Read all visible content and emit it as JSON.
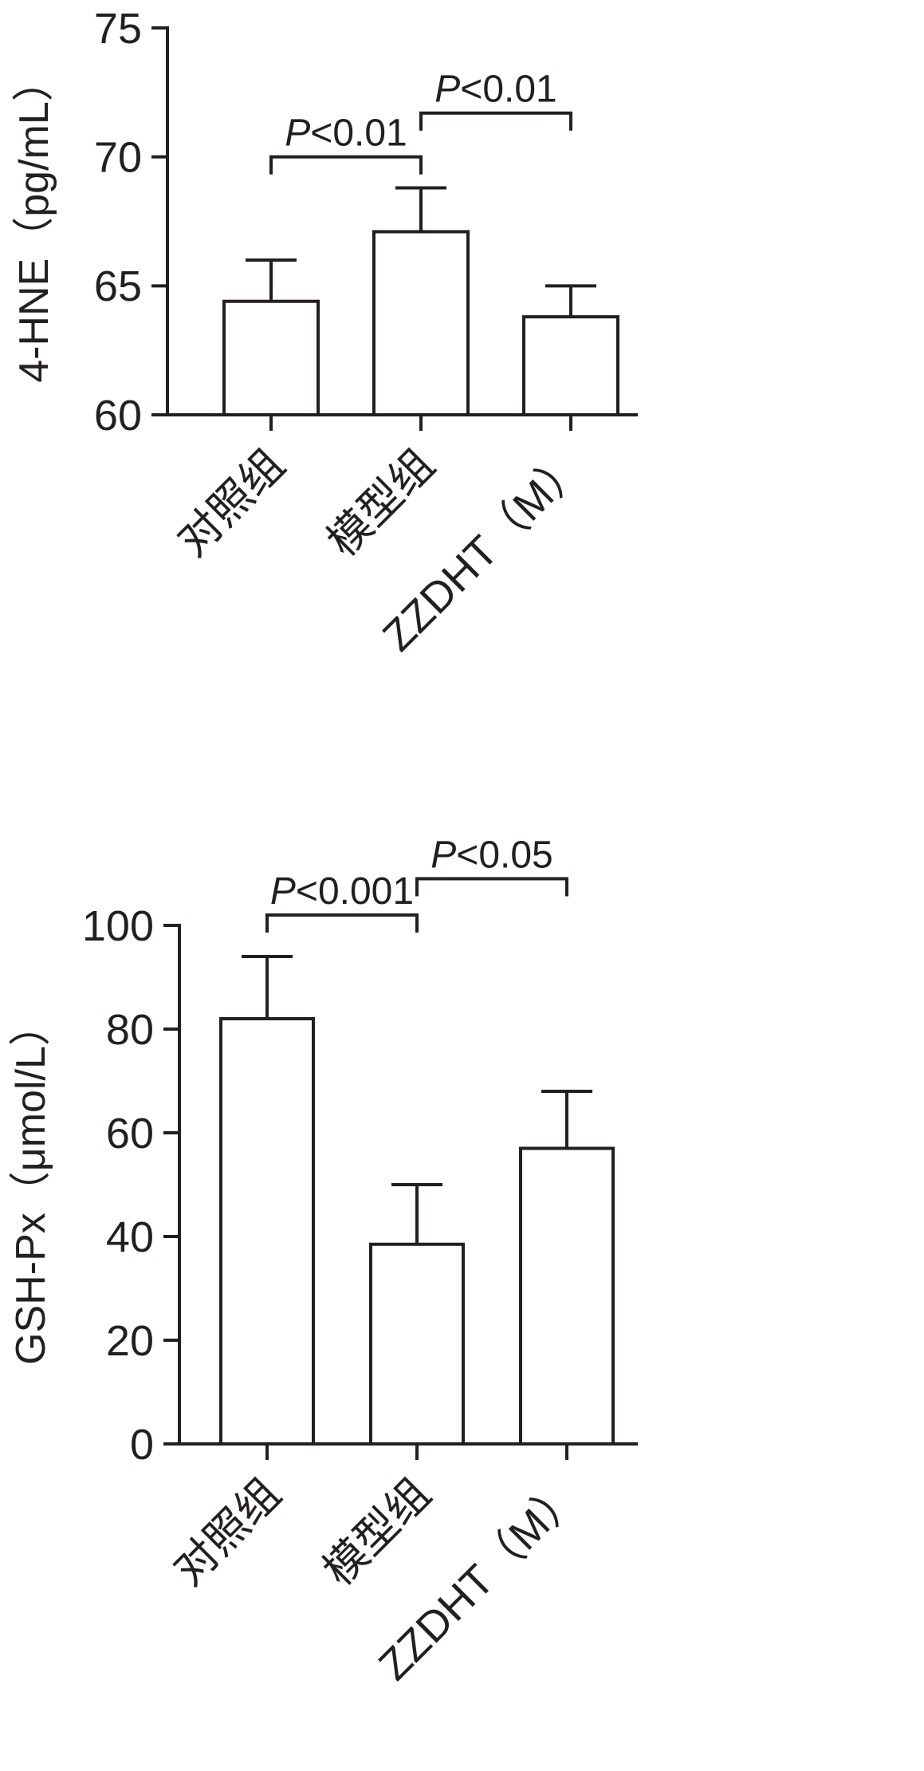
{
  "figure": {
    "background": "#ffffff",
    "ink": "#231f20",
    "panel_count": 2
  },
  "chart_data": [
    {
      "type": "bar",
      "title": "",
      "ylabel": "4-HNE（pg/mL）",
      "xlabel": "",
      "categories": [
        "对照组",
        "模型组",
        "ZZDHT（M）"
      ],
      "values": [
        64.4,
        67.1,
        63.8
      ],
      "errors_upper": [
        1.6,
        1.7,
        1.2
      ],
      "ylim": [
        60,
        75
      ],
      "yticks": [
        60,
        65,
        70,
        75
      ],
      "grid": false,
      "legend": null,
      "bar_fill": "#ffffff",
      "bar_stroke": "#231f20",
      "annotations": [
        {
          "label": "P<0.01",
          "between": [
            0,
            1
          ],
          "y": 70.0
        },
        {
          "label": "P<0.01",
          "between": [
            1,
            2
          ],
          "y": 71.7
        }
      ]
    },
    {
      "type": "bar",
      "title": "",
      "ylabel": "GSH-Px（μmol/L）",
      "xlabel": "",
      "categories": [
        "对照组",
        "模型组",
        "ZZDHT（M）"
      ],
      "values": [
        82,
        38.5,
        57
      ],
      "errors_upper": [
        12,
        11.5,
        11
      ],
      "ylim": [
        0,
        100
      ],
      "yticks": [
        0,
        20,
        40,
        60,
        80,
        100
      ],
      "grid": false,
      "legend": null,
      "bar_fill": "#ffffff",
      "bar_stroke": "#231f20",
      "annotations": [
        {
          "label": "P<0.001",
          "between": [
            0,
            1
          ],
          "y": 102
        },
        {
          "label": "P<0.05",
          "between": [
            1,
            2
          ],
          "y": 109
        }
      ]
    }
  ]
}
